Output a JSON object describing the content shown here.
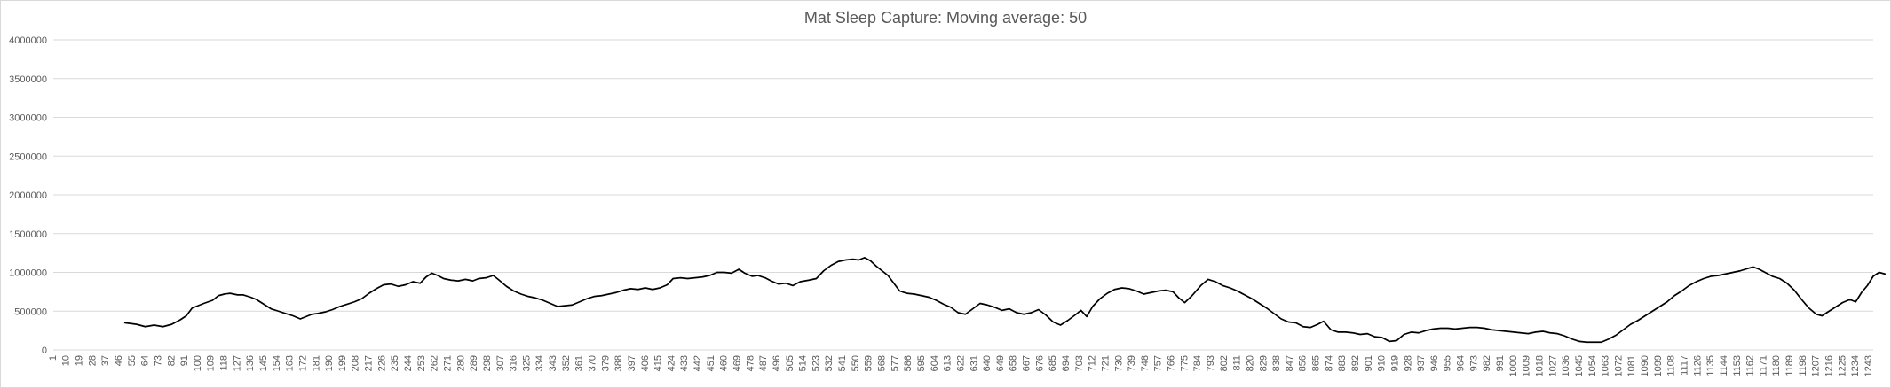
{
  "chart_data": {
    "type": "line",
    "title": "Mat Sleep Capture: Moving average: 50",
    "xlabel": "",
    "ylabel": "",
    "ylim": [
      0,
      4000000
    ],
    "yticks": [
      0,
      500000,
      1000000,
      1500000,
      2000000,
      2500000,
      3000000,
      3500000,
      4000000
    ],
    "yticklabels": [
      "0",
      "500000",
      "1000000",
      "1500000",
      "2000000",
      "2500000",
      "3000000",
      "3500000",
      "4000000"
    ],
    "x_range": [
      1,
      1246
    ],
    "xticks": [
      1,
      10,
      19,
      28,
      37,
      46,
      55,
      64,
      73,
      82,
      91,
      100,
      109,
      118,
      127,
      136,
      145,
      154,
      163,
      172,
      181,
      190,
      199,
      208,
      217,
      226,
      235,
      244,
      253,
      262,
      271,
      280,
      289,
      298,
      307,
      316,
      325,
      334,
      343,
      352,
      361,
      370,
      379,
      388,
      397,
      406,
      415,
      424,
      433,
      442,
      451,
      460,
      469,
      478,
      487,
      496,
      505,
      514,
      523,
      532,
      541,
      550,
      559,
      568,
      577,
      586,
      595,
      604,
      613,
      622,
      631,
      640,
      649,
      658,
      667,
      676,
      685,
      694,
      703,
      712,
      721,
      730,
      739,
      748,
      757,
      766,
      775,
      784,
      793,
      802,
      811,
      820,
      829,
      838,
      847,
      856,
      865,
      874,
      883,
      892,
      901,
      910,
      919,
      928,
      937,
      946,
      955,
      964,
      973,
      982,
      991,
      1000,
      1009,
      1018,
      1027,
      1036,
      1045,
      1054,
      1063,
      1072,
      1081,
      1090,
      1099,
      1108,
      1117,
      1126,
      1135,
      1144,
      1153,
      1162,
      1171,
      1180,
      1189,
      1198,
      1207,
      1216,
      1225,
      1234,
      1243
    ],
    "grid": true,
    "legend": "none",
    "series": [
      {
        "color": "#000000",
        "points": [
          [
            50,
            350000
          ],
          [
            58,
            330000
          ],
          [
            64,
            300000
          ],
          [
            70,
            320000
          ],
          [
            76,
            300000
          ],
          [
            82,
            330000
          ],
          [
            88,
            390000
          ],
          [
            92,
            440000
          ],
          [
            96,
            540000
          ],
          [
            100,
            570000
          ],
          [
            104,
            600000
          ],
          [
            110,
            640000
          ],
          [
            114,
            700000
          ],
          [
            118,
            720000
          ],
          [
            122,
            730000
          ],
          [
            127,
            710000
          ],
          [
            131,
            710000
          ],
          [
            136,
            680000
          ],
          [
            140,
            650000
          ],
          [
            145,
            590000
          ],
          [
            150,
            530000
          ],
          [
            155,
            500000
          ],
          [
            160,
            470000
          ],
          [
            165,
            440000
          ],
          [
            170,
            400000
          ],
          [
            174,
            430000
          ],
          [
            178,
            460000
          ],
          [
            182,
            470000
          ],
          [
            187,
            490000
          ],
          [
            192,
            520000
          ],
          [
            197,
            560000
          ],
          [
            202,
            590000
          ],
          [
            207,
            620000
          ],
          [
            212,
            660000
          ],
          [
            217,
            730000
          ],
          [
            222,
            790000
          ],
          [
            227,
            840000
          ],
          [
            232,
            850000
          ],
          [
            237,
            820000
          ],
          [
            242,
            840000
          ],
          [
            247,
            880000
          ],
          [
            252,
            860000
          ],
          [
            256,
            940000
          ],
          [
            260,
            990000
          ],
          [
            264,
            960000
          ],
          [
            268,
            920000
          ],
          [
            273,
            900000
          ],
          [
            278,
            890000
          ],
          [
            283,
            910000
          ],
          [
            288,
            890000
          ],
          [
            292,
            920000
          ],
          [
            297,
            930000
          ],
          [
            302,
            960000
          ],
          [
            306,
            900000
          ],
          [
            311,
            820000
          ],
          [
            316,
            760000
          ],
          [
            321,
            720000
          ],
          [
            326,
            690000
          ],
          [
            331,
            670000
          ],
          [
            336,
            640000
          ],
          [
            341,
            600000
          ],
          [
            346,
            560000
          ],
          [
            351,
            570000
          ],
          [
            356,
            580000
          ],
          [
            361,
            620000
          ],
          [
            366,
            660000
          ],
          [
            371,
            690000
          ],
          [
            376,
            700000
          ],
          [
            381,
            720000
          ],
          [
            386,
            740000
          ],
          [
            391,
            770000
          ],
          [
            396,
            790000
          ],
          [
            401,
            780000
          ],
          [
            406,
            800000
          ],
          [
            411,
            780000
          ],
          [
            416,
            800000
          ],
          [
            421,
            840000
          ],
          [
            425,
            920000
          ],
          [
            430,
            930000
          ],
          [
            435,
            920000
          ],
          [
            440,
            930000
          ],
          [
            445,
            940000
          ],
          [
            450,
            960000
          ],
          [
            455,
            1000000
          ],
          [
            460,
            1000000
          ],
          [
            465,
            990000
          ],
          [
            470,
            1040000
          ],
          [
            474,
            990000
          ],
          [
            479,
            950000
          ],
          [
            483,
            960000
          ],
          [
            488,
            930000
          ],
          [
            492,
            890000
          ],
          [
            497,
            850000
          ],
          [
            502,
            860000
          ],
          [
            507,
            830000
          ],
          [
            512,
            880000
          ],
          [
            518,
            900000
          ],
          [
            523,
            920000
          ],
          [
            528,
            1020000
          ],
          [
            533,
            1090000
          ],
          [
            538,
            1140000
          ],
          [
            543,
            1160000
          ],
          [
            548,
            1170000
          ],
          [
            552,
            1160000
          ],
          [
            556,
            1190000
          ],
          [
            560,
            1150000
          ],
          [
            564,
            1080000
          ],
          [
            568,
            1020000
          ],
          [
            572,
            960000
          ],
          [
            576,
            860000
          ],
          [
            580,
            760000
          ],
          [
            585,
            730000
          ],
          [
            590,
            720000
          ],
          [
            595,
            700000
          ],
          [
            600,
            680000
          ],
          [
            605,
            640000
          ],
          [
            610,
            590000
          ],
          [
            615,
            550000
          ],
          [
            620,
            480000
          ],
          [
            625,
            460000
          ],
          [
            630,
            530000
          ],
          [
            635,
            600000
          ],
          [
            640,
            580000
          ],
          [
            645,
            550000
          ],
          [
            650,
            510000
          ],
          [
            655,
            530000
          ],
          [
            660,
            480000
          ],
          [
            665,
            460000
          ],
          [
            670,
            480000
          ],
          [
            675,
            520000
          ],
          [
            680,
            450000
          ],
          [
            685,
            360000
          ],
          [
            690,
            320000
          ],
          [
            695,
            380000
          ],
          [
            700,
            450000
          ],
          [
            704,
            510000
          ],
          [
            708,
            430000
          ],
          [
            712,
            560000
          ],
          [
            717,
            660000
          ],
          [
            722,
            730000
          ],
          [
            727,
            780000
          ],
          [
            732,
            800000
          ],
          [
            737,
            790000
          ],
          [
            742,
            760000
          ],
          [
            747,
            720000
          ],
          [
            752,
            740000
          ],
          [
            757,
            760000
          ],
          [
            762,
            770000
          ],
          [
            767,
            750000
          ],
          [
            771,
            670000
          ],
          [
            775,
            610000
          ],
          [
            780,
            700000
          ],
          [
            786,
            830000
          ],
          [
            791,
            910000
          ],
          [
            796,
            880000
          ],
          [
            801,
            830000
          ],
          [
            806,
            800000
          ],
          [
            811,
            760000
          ],
          [
            816,
            710000
          ],
          [
            821,
            660000
          ],
          [
            826,
            600000
          ],
          [
            831,
            540000
          ],
          [
            836,
            470000
          ],
          [
            841,
            400000
          ],
          [
            846,
            360000
          ],
          [
            851,
            350000
          ],
          [
            856,
            300000
          ],
          [
            861,
            290000
          ],
          [
            866,
            330000
          ],
          [
            870,
            370000
          ],
          [
            875,
            260000
          ],
          [
            880,
            230000
          ],
          [
            885,
            230000
          ],
          [
            890,
            220000
          ],
          [
            895,
            200000
          ],
          [
            900,
            210000
          ],
          [
            905,
            170000
          ],
          [
            910,
            160000
          ],
          [
            915,
            110000
          ],
          [
            920,
            120000
          ],
          [
            925,
            200000
          ],
          [
            930,
            230000
          ],
          [
            935,
            220000
          ],
          [
            940,
            250000
          ],
          [
            945,
            270000
          ],
          [
            950,
            280000
          ],
          [
            955,
            280000
          ],
          [
            960,
            270000
          ],
          [
            965,
            280000
          ],
          [
            970,
            290000
          ],
          [
            975,
            290000
          ],
          [
            980,
            280000
          ],
          [
            985,
            260000
          ],
          [
            990,
            250000
          ],
          [
            995,
            240000
          ],
          [
            1000,
            230000
          ],
          [
            1005,
            220000
          ],
          [
            1010,
            210000
          ],
          [
            1015,
            230000
          ],
          [
            1020,
            240000
          ],
          [
            1025,
            220000
          ],
          [
            1030,
            210000
          ],
          [
            1035,
            180000
          ],
          [
            1040,
            140000
          ],
          [
            1045,
            110000
          ],
          [
            1050,
            100000
          ],
          [
            1055,
            100000
          ],
          [
            1060,
            100000
          ],
          [
            1065,
            140000
          ],
          [
            1070,
            190000
          ],
          [
            1075,
            260000
          ],
          [
            1080,
            330000
          ],
          [
            1085,
            380000
          ],
          [
            1090,
            440000
          ],
          [
            1095,
            500000
          ],
          [
            1100,
            560000
          ],
          [
            1105,
            620000
          ],
          [
            1110,
            700000
          ],
          [
            1115,
            760000
          ],
          [
            1120,
            830000
          ],
          [
            1125,
            880000
          ],
          [
            1130,
            920000
          ],
          [
            1135,
            950000
          ],
          [
            1140,
            960000
          ],
          [
            1145,
            980000
          ],
          [
            1150,
            1000000
          ],
          [
            1155,
            1020000
          ],
          [
            1160,
            1050000
          ],
          [
            1164,
            1070000
          ],
          [
            1168,
            1040000
          ],
          [
            1172,
            1000000
          ],
          [
            1177,
            950000
          ],
          [
            1182,
            920000
          ],
          [
            1187,
            860000
          ],
          [
            1192,
            770000
          ],
          [
            1197,
            650000
          ],
          [
            1202,
            540000
          ],
          [
            1207,
            460000
          ],
          [
            1211,
            440000
          ],
          [
            1215,
            490000
          ],
          [
            1220,
            550000
          ],
          [
            1225,
            610000
          ],
          [
            1230,
            650000
          ],
          [
            1234,
            620000
          ],
          [
            1238,
            740000
          ],
          [
            1242,
            830000
          ],
          [
            1246,
            950000
          ],
          [
            1250,
            1000000
          ],
          [
            1254,
            980000
          ]
        ]
      }
    ]
  }
}
